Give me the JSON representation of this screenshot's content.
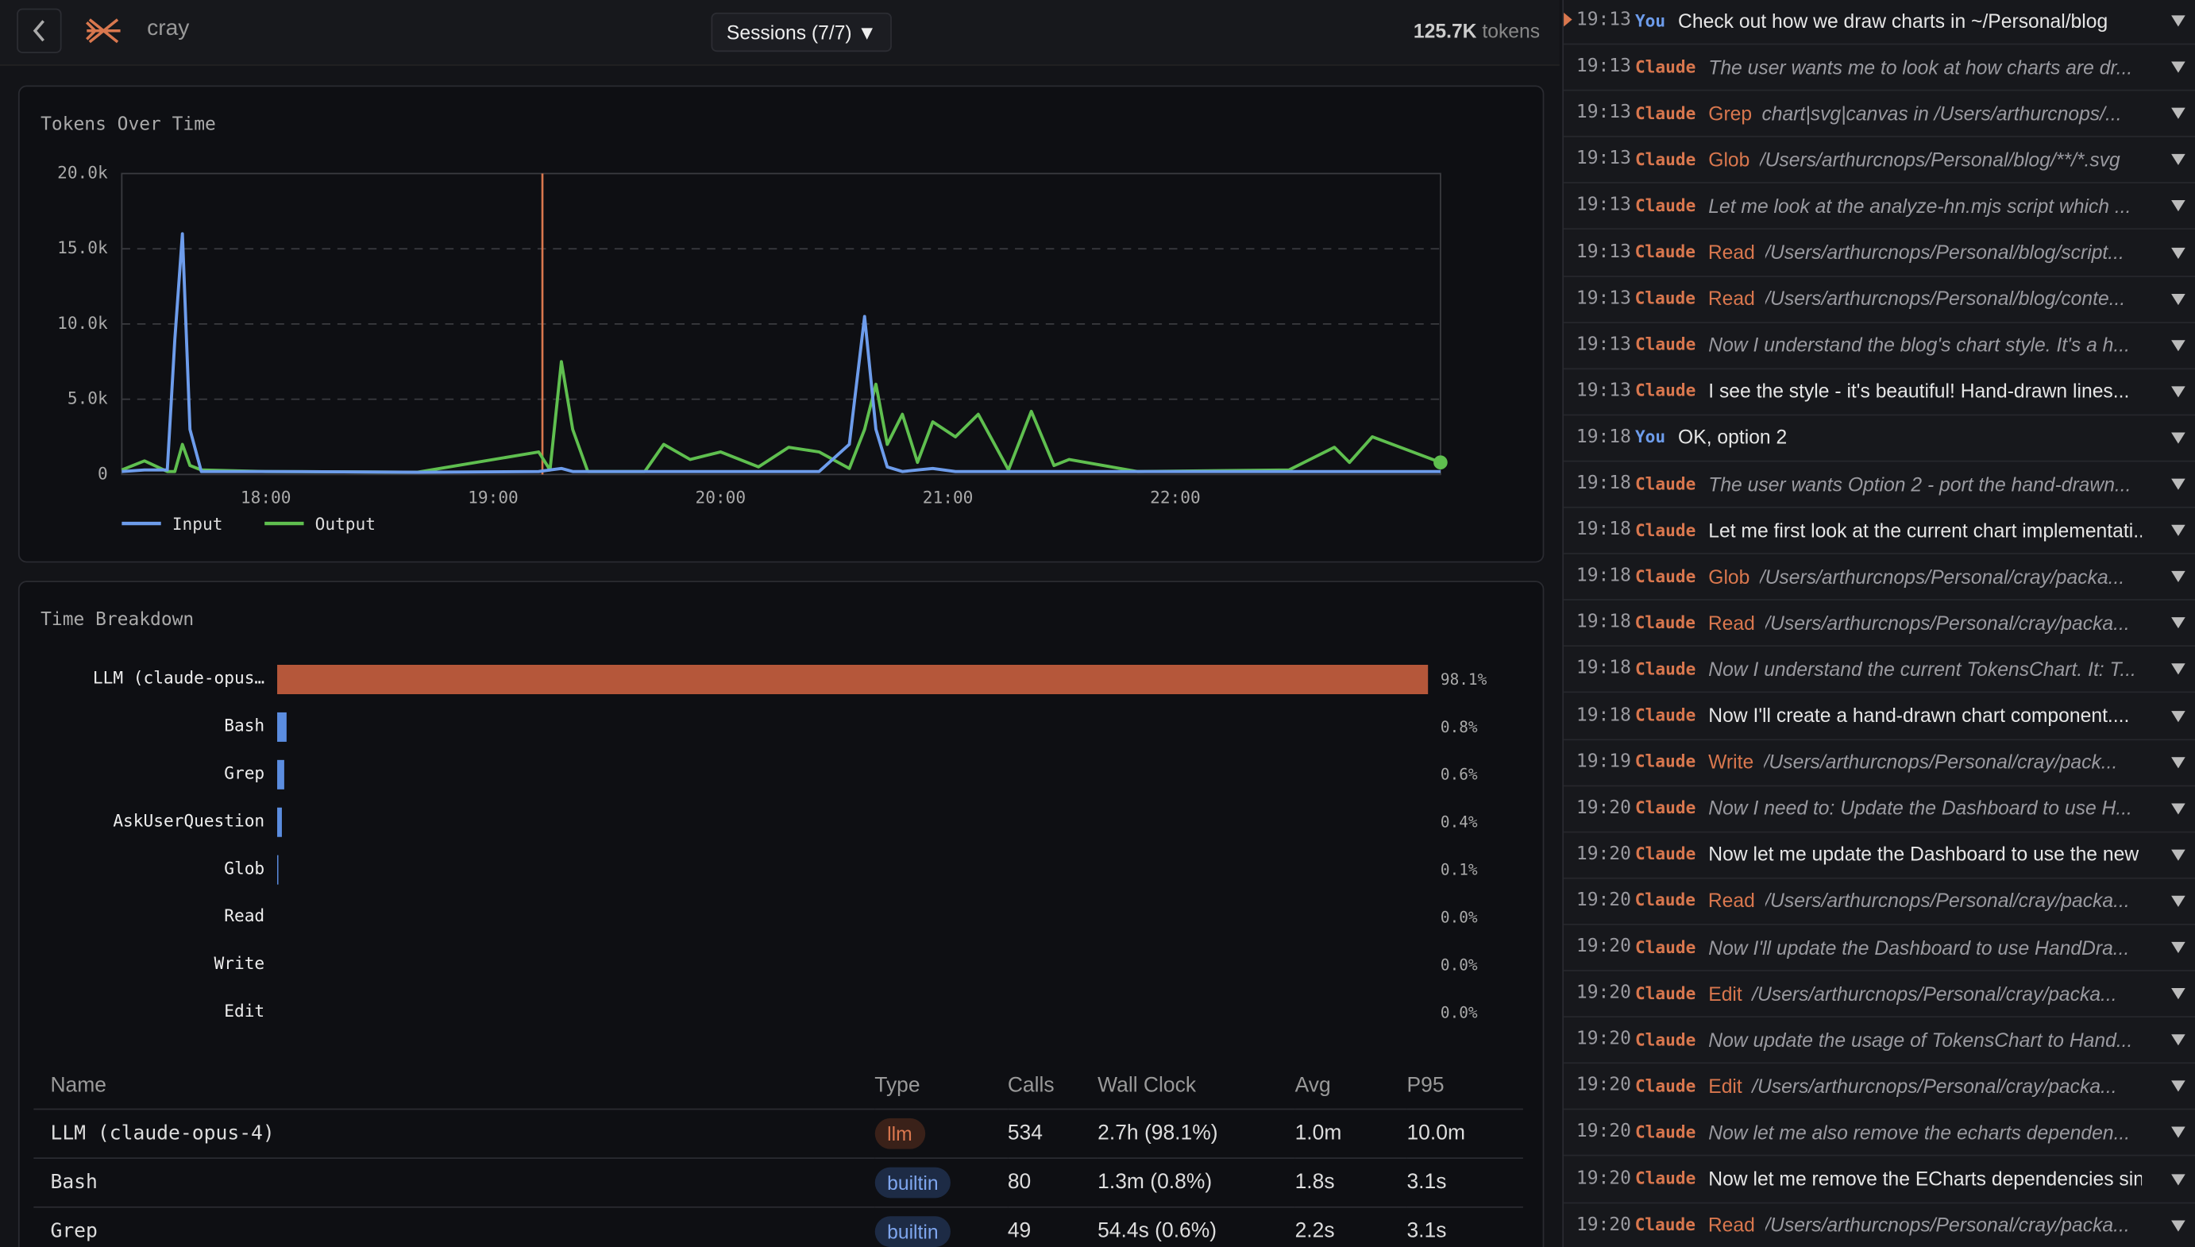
{
  "header": {
    "app": "cray",
    "sessions": "Sessions (7/7) ▼",
    "tokens": "125.7K",
    "tokens_unit": "tokens"
  },
  "tokens_chart": {
    "type": "line",
    "title": "Tokens Over Time",
    "x": [
      1042,
      1048,
      1054,
      1056,
      1058,
      1060,
      1063,
      1080,
      1120,
      1152,
      1155,
      1158,
      1161,
      1165,
      1180,
      1185,
      1192,
      1200,
      1210,
      1218,
      1226,
      1234,
      1238,
      1241,
      1244,
      1248,
      1252,
      1256,
      1262,
      1268,
      1276,
      1282,
      1288,
      1292,
      1310,
      1350,
      1362,
      1366,
      1372,
      1390
    ],
    "series": [
      {
        "name": "Input",
        "color": "#6d9ceb",
        "values": [
          200,
          300,
          300,
          9000,
          16000,
          3000,
          200,
          200,
          150,
          200,
          300,
          400,
          200,
          200,
          200,
          200,
          200,
          200,
          200,
          200,
          200,
          2000,
          10500,
          3000,
          500,
          200,
          300,
          400,
          200,
          200,
          200,
          200,
          200,
          200,
          200,
          200,
          200,
          200,
          200,
          200
        ]
      },
      {
        "name": "Output",
        "color": "#5fbf4f",
        "values": [
          300,
          900,
          200,
          200,
          2000,
          600,
          300,
          200,
          150,
          1500,
          300,
          7500,
          3000,
          200,
          200,
          2000,
          1000,
          1500,
          500,
          1800,
          1500,
          400,
          3000,
          6000,
          2000,
          4000,
          800,
          3500,
          2500,
          4000,
          300,
          4200,
          600,
          1000,
          200,
          300,
          1800,
          800,
          2500,
          800
        ]
      }
    ],
    "marker_x": 1153,
    "marker_color": "#d9774e",
    "xlim": [
      1042,
      1390
    ],
    "xticks": [
      {
        "value": 1080,
        "label": "18:00"
      },
      {
        "value": 1140,
        "label": "19:00"
      },
      {
        "value": 1200,
        "label": "20:00"
      },
      {
        "value": 1260,
        "label": "21:00"
      },
      {
        "value": 1320,
        "label": "22:00"
      }
    ],
    "ylim": [
      0,
      20000
    ],
    "yticks": [
      0,
      {
        "value": 5000,
        "label": "5.0k"
      },
      {
        "value": 10000,
        "label": "10.0k"
      },
      {
        "value": 15000,
        "label": "15.0k"
      },
      {
        "value": 20000,
        "label": "20.0k"
      }
    ],
    "grid": true
  },
  "time_breakdown": {
    "type": "bar",
    "title": "Time Breakdown",
    "categories": [
      "LLM (claude-opus…",
      "Bash",
      "Grep",
      "AskUserQuestion",
      "Glob",
      "Read",
      "Write",
      "Edit"
    ],
    "values": [
      98.1,
      0.8,
      0.6,
      0.4,
      0.1,
      0.0,
      0.0,
      0.0
    ],
    "value_labels": [
      "98.1%",
      "0.8%",
      "0.6%",
      "0.4%",
      "0.1%",
      "0.0%",
      "0.0%",
      "0.0%"
    ],
    "colors": [
      "#b5573a",
      "#5b8de0",
      "#5b8de0",
      "#5b8de0",
      "#5b8de0",
      "#5b8de0",
      "#5b8de0",
      "#5b8de0"
    ],
    "xlim": [
      0,
      100
    ]
  },
  "table": {
    "columns": [
      "Name",
      "Type",
      "Calls",
      "Wall Clock",
      "Avg",
      "P95"
    ],
    "rows": [
      [
        "LLM (claude-opus-4)",
        "llm",
        "534",
        "2.7h (98.1%)",
        "1.0m",
        "10.0m"
      ],
      [
        "Bash",
        "builtin",
        "80",
        "1.3m (0.8%)",
        "1.8s",
        "3.1s"
      ],
      [
        "Grep",
        "builtin",
        "49",
        "54.4s (0.6%)",
        "2.2s",
        "3.1s"
      ]
    ]
  },
  "transcript": [
    {
      "time": "19:13",
      "who": "You",
      "text": "Check out how we draw charts in ~/Personal/blog ....",
      "italic": false
    },
    {
      "time": "19:13",
      "who": "Claude",
      "text": "The user wants me to look at how charts are dr...",
      "italic": true
    },
    {
      "time": "19:13",
      "who": "Claude",
      "tool": "Grep",
      "text": "chart|svg|canvas in /Users/arthurcnops/...",
      "italic": true
    },
    {
      "time": "19:13",
      "who": "Claude",
      "tool": "Glob",
      "text": "/Users/arthurcnops/Personal/blog/**/*.svg",
      "italic": true
    },
    {
      "time": "19:13",
      "who": "Claude",
      "text": "Let me look at the analyze-hn.mjs script which ...",
      "italic": true
    },
    {
      "time": "19:13",
      "who": "Claude",
      "tool": "Read",
      "text": "/Users/arthurcnops/Personal/blog/script...",
      "italic": true
    },
    {
      "time": "19:13",
      "who": "Claude",
      "tool": "Read",
      "text": "/Users/arthurcnops/Personal/blog/conte...",
      "italic": true
    },
    {
      "time": "19:13",
      "who": "Claude",
      "text": "Now I understand the blog's chart style. It's a h...",
      "italic": true
    },
    {
      "time": "19:13",
      "who": "Claude",
      "text": "I see the style - it's beautiful! Hand-drawn lines...",
      "italic": false
    },
    {
      "time": "19:18",
      "who": "You",
      "text": "OK, option 2",
      "italic": false
    },
    {
      "time": "19:18",
      "who": "Claude",
      "text": "The user wants Option 2 - port the hand-drawn...",
      "italic": true
    },
    {
      "time": "19:18",
      "who": "Claude",
      "text": "Let me first look at the current chart implementati...",
      "italic": false
    },
    {
      "time": "19:18",
      "who": "Claude",
      "tool": "Glob",
      "text": "/Users/arthurcnops/Personal/cray/packa...",
      "italic": true
    },
    {
      "time": "19:18",
      "who": "Claude",
      "tool": "Read",
      "text": "/Users/arthurcnops/Personal/cray/packa...",
      "italic": true
    },
    {
      "time": "19:18",
      "who": "Claude",
      "text": "Now I understand the current TokensChart. It: T...",
      "italic": true
    },
    {
      "time": "19:18",
      "who": "Claude",
      "text": "Now I'll create a hand-drawn chart component....",
      "italic": false
    },
    {
      "time": "19:19",
      "who": "Claude",
      "tool": "Write",
      "text": "/Users/arthurcnops/Personal/cray/pack...",
      "italic": true
    },
    {
      "time": "19:20",
      "who": "Claude",
      "text": "Now I need to: Update the Dashboard to use H...",
      "italic": true
    },
    {
      "time": "19:20",
      "who": "Claude",
      "text": "Now let me update the Dashboard to use the new ...",
      "italic": false
    },
    {
      "time": "19:20",
      "who": "Claude",
      "tool": "Read",
      "text": "/Users/arthurcnops/Personal/cray/packa...",
      "italic": true
    },
    {
      "time": "19:20",
      "who": "Claude",
      "text": "Now I'll update the Dashboard to use HandDra...",
      "italic": true
    },
    {
      "time": "19:20",
      "who": "Claude",
      "tool": "Edit",
      "text": "/Users/arthurcnops/Personal/cray/packa...",
      "italic": true
    },
    {
      "time": "19:20",
      "who": "Claude",
      "text": "Now update the usage of TokensChart to Hand...",
      "italic": true
    },
    {
      "time": "19:20",
      "who": "Claude",
      "tool": "Edit",
      "text": "/Users/arthurcnops/Personal/cray/packa...",
      "italic": true
    },
    {
      "time": "19:20",
      "who": "Claude",
      "text": "Now let me also remove the echarts dependen...",
      "italic": true
    },
    {
      "time": "19:20",
      "who": "Claude",
      "text": "Now let me remove the ECharts dependencies sin...",
      "italic": false
    },
    {
      "time": "19:20",
      "who": "Claude",
      "tool": "Read",
      "text": "/Users/arthurcnops/Personal/cray/packa...",
      "italic": true
    }
  ]
}
